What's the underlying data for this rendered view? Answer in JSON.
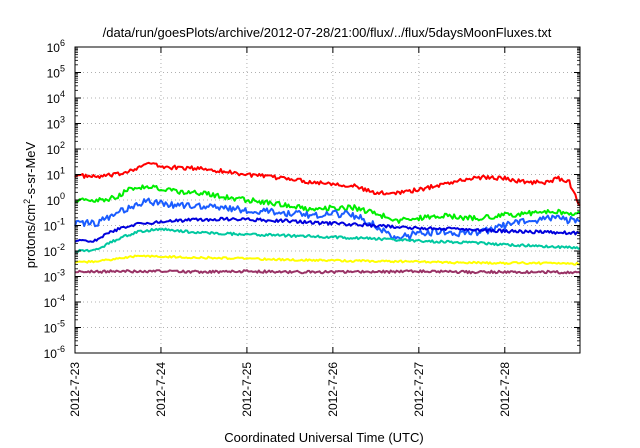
{
  "chart_data": {
    "type": "line",
    "title": "/data/run/goesPlots/archive/2012-07-28/21:00/flux/../flux/5daysMoonFluxes.txt",
    "xlabel": "Coordinated Universal Time (UTC)",
    "ylabel": "protons/cm2-s-sr-MeV",
    "ylabel_parts": {
      "pre": "protons/cm",
      "sup": "2",
      "post": "-s-sr-MeV"
    },
    "x_range": [
      "2012-07-23",
      "2012-07-28 21:00"
    ],
    "x_ticks": [
      "2012-7-23",
      "2012-7-24",
      "2012-7-25",
      "2012-7-26",
      "2012-7-27",
      "2012-7-28"
    ],
    "y_scale": "log",
    "y_range": [
      1e-06,
      1000000.0
    ],
    "y_ticks": [
      {
        "base": "10",
        "exp": "-6"
      },
      {
        "base": "10",
        "exp": "-5"
      },
      {
        "base": "10",
        "exp": "-4"
      },
      {
        "base": "10",
        "exp": "-3"
      },
      {
        "base": "10",
        "exp": "-2"
      },
      {
        "base": "10",
        "exp": "-1"
      },
      {
        "base": "10",
        "exp": "0"
      },
      {
        "base": "10",
        "exp": "1"
      },
      {
        "base": "10",
        "exp": "2"
      },
      {
        "base": "10",
        "exp": "3"
      },
      {
        "base": "10",
        "exp": "4"
      },
      {
        "base": "10",
        "exp": "5"
      },
      {
        "base": "10",
        "exp": "6"
      }
    ],
    "grid": true,
    "legend": "none",
    "series": [
      {
        "color": "#ff0000",
        "points": [
          [
            "2012-07-23 00:00",
            9.2
          ],
          [
            "2012-07-23 06:00",
            8.0
          ],
          [
            "2012-07-23 12:00",
            10.0
          ],
          [
            "2012-07-23 18:00",
            20.0
          ],
          [
            "2012-07-23 21:00",
            28.0
          ],
          [
            "2012-07-24 00:00",
            20.0
          ],
          [
            "2012-07-24 06:00",
            18.0
          ],
          [
            "2012-07-24 12:00",
            17.0
          ],
          [
            "2012-07-24 18:00",
            13.0
          ],
          [
            "2012-07-25 00:00",
            10.0
          ],
          [
            "2012-07-25 06:00",
            8.0
          ],
          [
            "2012-07-25 12:00",
            7.0
          ],
          [
            "2012-07-25 18:00",
            5.0
          ],
          [
            "2012-07-26 00:00",
            4.5
          ],
          [
            "2012-07-26 06:00",
            3.5
          ],
          [
            "2012-07-26 12:00",
            1.8
          ],
          [
            "2012-07-26 18:00",
            2.0
          ],
          [
            "2012-07-27 00:00",
            2.5
          ],
          [
            "2012-07-27 06:00",
            4.0
          ],
          [
            "2012-07-27 12:00",
            6.0
          ],
          [
            "2012-07-27 18:00",
            8.0
          ],
          [
            "2012-07-28 00:00",
            7.0
          ],
          [
            "2012-07-28 06:00",
            5.0
          ],
          [
            "2012-07-28 12:00",
            5.0
          ],
          [
            "2012-07-28 15:00",
            7.0
          ],
          [
            "2012-07-28 18:00",
            5.0
          ],
          [
            "2012-07-28 21:00",
            0.6
          ]
        ]
      },
      {
        "color": "#00ee00",
        "points": [
          [
            "2012-07-23 00:00",
            1.0
          ],
          [
            "2012-07-23 06:00",
            0.9
          ],
          [
            "2012-07-23 12:00",
            1.3
          ],
          [
            "2012-07-23 15:00",
            3.0
          ],
          [
            "2012-07-23 21:00",
            3.2
          ],
          [
            "2012-07-24 00:00",
            2.8
          ],
          [
            "2012-07-24 06:00",
            2.0
          ],
          [
            "2012-07-24 12:00",
            1.8
          ],
          [
            "2012-07-24 18:00",
            1.3
          ],
          [
            "2012-07-25 00:00",
            1.0
          ],
          [
            "2012-07-25 06:00",
            0.8
          ],
          [
            "2012-07-25 12:00",
            0.6
          ],
          [
            "2012-07-25 18:00",
            0.45
          ],
          [
            "2012-07-26 00:00",
            0.5
          ],
          [
            "2012-07-26 06:00",
            0.5
          ],
          [
            "2012-07-26 12:00",
            0.3
          ],
          [
            "2012-07-26 18:00",
            0.15
          ],
          [
            "2012-07-27 00:00",
            0.2
          ],
          [
            "2012-07-27 06:00",
            0.25
          ],
          [
            "2012-07-27 12:00",
            0.2
          ],
          [
            "2012-07-27 18:00",
            0.2
          ],
          [
            "2012-07-28 00:00",
            0.25
          ],
          [
            "2012-07-28 06:00",
            0.3
          ],
          [
            "2012-07-28 12:00",
            0.35
          ],
          [
            "2012-07-28 21:00",
            0.3
          ]
        ]
      },
      {
        "color": "#1a5cff",
        "points": [
          [
            "2012-07-23 00:00",
            0.12
          ],
          [
            "2012-07-23 06:00",
            0.12
          ],
          [
            "2012-07-23 12:00",
            0.3
          ],
          [
            "2012-07-23 18:00",
            0.8
          ],
          [
            "2012-07-23 21:00",
            0.9
          ],
          [
            "2012-07-24 00:00",
            0.7
          ],
          [
            "2012-07-24 06:00",
            0.6
          ],
          [
            "2012-07-24 12:00",
            0.55
          ],
          [
            "2012-07-24 18:00",
            0.5
          ],
          [
            "2012-07-25 00:00",
            0.4
          ],
          [
            "2012-07-25 06:00",
            0.35
          ],
          [
            "2012-07-25 12:00",
            0.3
          ],
          [
            "2012-07-25 18:00",
            0.25
          ],
          [
            "2012-07-26 00:00",
            0.3
          ],
          [
            "2012-07-26 06:00",
            0.25
          ],
          [
            "2012-07-26 12:00",
            0.1
          ],
          [
            "2012-07-26 18:00",
            0.03
          ],
          [
            "2012-07-27 00:00",
            0.05
          ],
          [
            "2012-07-27 06:00",
            0.06
          ],
          [
            "2012-07-27 12:00",
            0.05
          ],
          [
            "2012-07-27 18:00",
            0.06
          ],
          [
            "2012-07-28 00:00",
            0.1
          ],
          [
            "2012-07-28 06:00",
            0.15
          ],
          [
            "2012-07-28 12:00",
            0.2
          ],
          [
            "2012-07-28 21:00",
            0.15
          ]
        ]
      },
      {
        "color": "#0000dd",
        "points": [
          [
            "2012-07-23 00:00",
            0.025
          ],
          [
            "2012-07-23 06:00",
            0.025
          ],
          [
            "2012-07-23 09:00",
            0.05
          ],
          [
            "2012-07-23 15:00",
            0.1
          ],
          [
            "2012-07-24 00:00",
            0.14
          ],
          [
            "2012-07-24 06:00",
            0.16
          ],
          [
            "2012-07-24 12:00",
            0.17
          ],
          [
            "2012-07-24 18:00",
            0.18
          ],
          [
            "2012-07-25 00:00",
            0.17
          ],
          [
            "2012-07-25 12:00",
            0.15
          ],
          [
            "2012-07-26 00:00",
            0.12
          ],
          [
            "2012-07-26 12:00",
            0.1
          ],
          [
            "2012-07-27 00:00",
            0.08
          ],
          [
            "2012-07-27 12:00",
            0.07
          ],
          [
            "2012-07-28 00:00",
            0.06
          ],
          [
            "2012-07-28 12:00",
            0.055
          ],
          [
            "2012-07-28 21:00",
            0.05
          ]
        ]
      },
      {
        "color": "#00c8a0",
        "points": [
          [
            "2012-07-23 00:00",
            0.01
          ],
          [
            "2012-07-23 06:00",
            0.011
          ],
          [
            "2012-07-23 12:00",
            0.03
          ],
          [
            "2012-07-23 18:00",
            0.06
          ],
          [
            "2012-07-24 00:00",
            0.07
          ],
          [
            "2012-07-24 06:00",
            0.06
          ],
          [
            "2012-07-24 12:00",
            0.05
          ],
          [
            "2012-07-25 00:00",
            0.045
          ],
          [
            "2012-07-25 12:00",
            0.04
          ],
          [
            "2012-07-26 00:00",
            0.035
          ],
          [
            "2012-07-26 12:00",
            0.03
          ],
          [
            "2012-07-27 00:00",
            0.025
          ],
          [
            "2012-07-27 12:00",
            0.022
          ],
          [
            "2012-07-28 00:00",
            0.018
          ],
          [
            "2012-07-28 12:00",
            0.015
          ],
          [
            "2012-07-28 21:00",
            0.013
          ]
        ]
      },
      {
        "color": "#ffff00",
        "points": [
          [
            "2012-07-23 00:00",
            0.0035
          ],
          [
            "2012-07-23 06:00",
            0.004
          ],
          [
            "2012-07-23 12:00",
            0.005
          ],
          [
            "2012-07-23 18:00",
            0.0065
          ],
          [
            "2012-07-24 00:00",
            0.006
          ],
          [
            "2012-07-24 12:00",
            0.0055
          ],
          [
            "2012-07-25 00:00",
            0.005
          ],
          [
            "2012-07-25 12:00",
            0.0045
          ],
          [
            "2012-07-26 00:00",
            0.0042
          ],
          [
            "2012-07-26 12:00",
            0.004
          ],
          [
            "2012-07-27 00:00",
            0.0038
          ],
          [
            "2012-07-27 12:00",
            0.0035
          ],
          [
            "2012-07-28 00:00",
            0.0034
          ],
          [
            "2012-07-28 12:00",
            0.0033
          ],
          [
            "2012-07-28 21:00",
            0.0032
          ]
        ]
      },
      {
        "color": "#993366",
        "points": [
          [
            "2012-07-23 00:00",
            0.0015
          ],
          [
            "2012-07-23 12:00",
            0.0016
          ],
          [
            "2012-07-24 00:00",
            0.0016
          ],
          [
            "2012-07-24 12:00",
            0.0015
          ],
          [
            "2012-07-25 00:00",
            0.0016
          ],
          [
            "2012-07-25 12:00",
            0.0015
          ],
          [
            "2012-07-26 00:00",
            0.0015
          ],
          [
            "2012-07-26 12:00",
            0.0015
          ],
          [
            "2012-07-27 00:00",
            0.0016
          ],
          [
            "2012-07-27 12:00",
            0.0015
          ],
          [
            "2012-07-28 00:00",
            0.0015
          ],
          [
            "2012-07-28 12:00",
            0.0015
          ],
          [
            "2012-07-28 21:00",
            0.0014
          ]
        ]
      }
    ]
  }
}
